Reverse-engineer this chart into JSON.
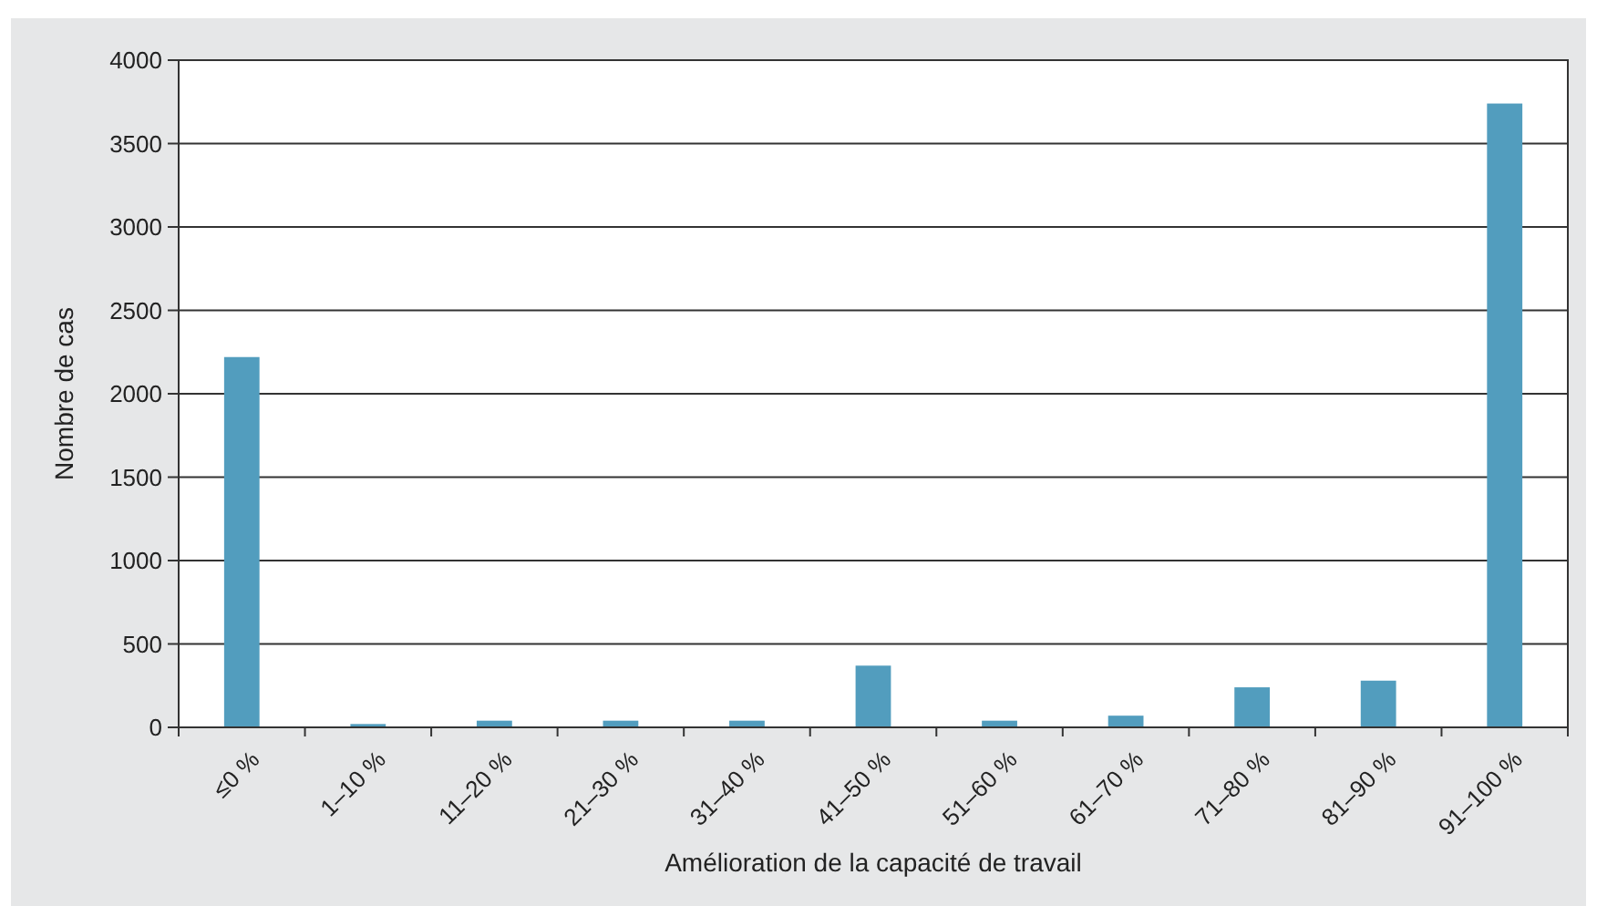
{
  "chart_data": {
    "type": "bar",
    "xlabel": "Amélioration de la capacité de travail",
    "ylabel": "Nombre de cas",
    "categories": [
      "≤0 %",
      "1–10 %",
      "11–20 %",
      "21–30 %",
      "31–40 %",
      "41–50 %",
      "51–60 %",
      "61–70 %",
      "71–80 %",
      "81–90 %",
      "91–100 %"
    ],
    "values": [
      2220,
      20,
      40,
      40,
      40,
      370,
      40,
      70,
      240,
      280,
      3740
    ],
    "color": "#529dbe",
    "ylim": [
      0,
      4000
    ],
    "yticks": [
      0,
      500,
      1000,
      1500,
      2000,
      2500,
      3000,
      3500,
      4000
    ],
    "grid": "y"
  }
}
